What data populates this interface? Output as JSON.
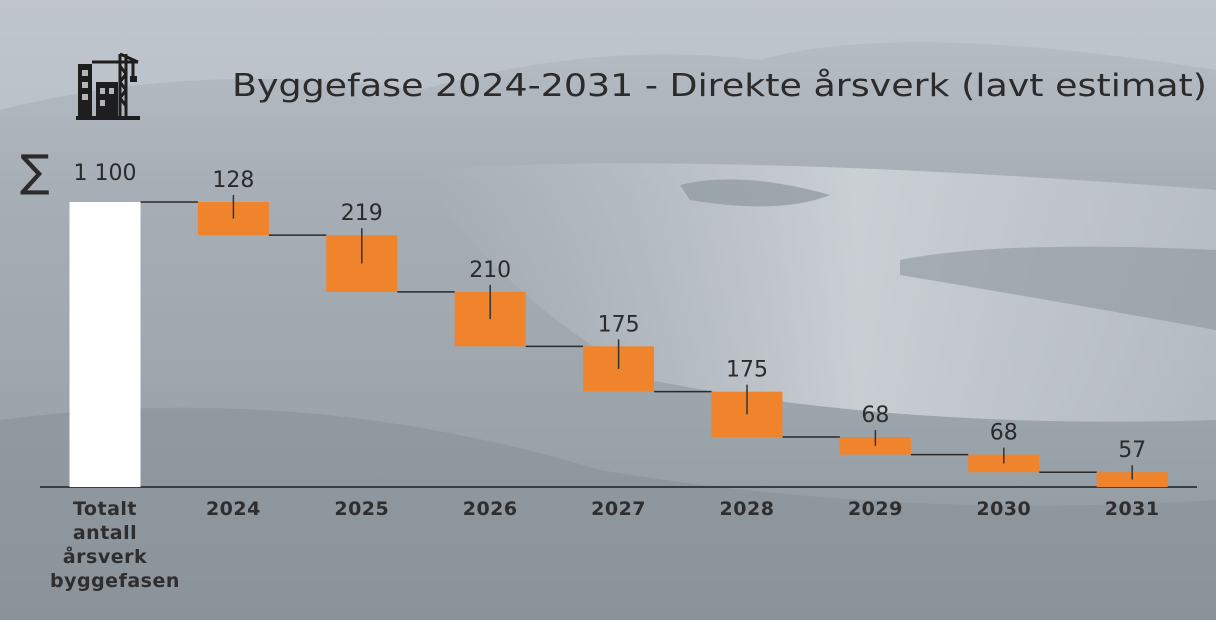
{
  "chart_data": {
    "type": "waterfall",
    "title": "Byggefase 2024-2031 - Direkte årsverk (lavt estimat)",
    "total_symbol": "∑",
    "categories": [
      "Totalt antall årsverk byggefasen",
      "2024",
      "2025",
      "2026",
      "2027",
      "2028",
      "2029",
      "2030",
      "2031"
    ],
    "values": [
      1100,
      128,
      219,
      210,
      175,
      175,
      68,
      68,
      57
    ],
    "value_labels": [
      "1 100",
      "128",
      "219",
      "210",
      "175",
      "175",
      "68",
      "68",
      "57"
    ],
    "total_color": "#ffffff",
    "color": "#f0842c"
  }
}
